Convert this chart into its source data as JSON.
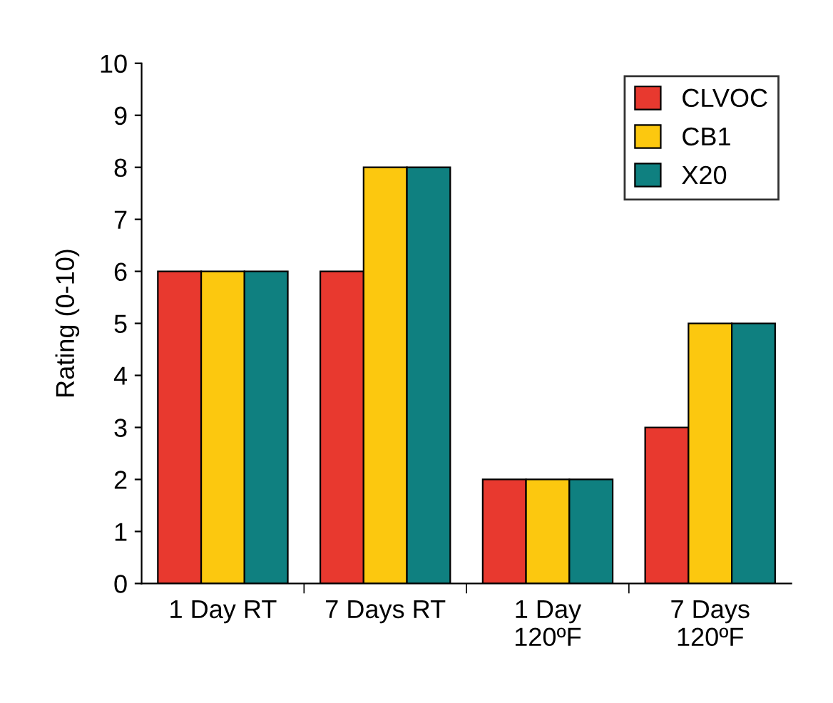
{
  "chart_data": {
    "type": "bar",
    "ylabel": "Rating (0-10)",
    "categories": [
      "1 Day RT",
      "7 Days RT",
      "1 Day\n120ºF",
      "7 Days\n120ºF"
    ],
    "series": [
      {
        "name": "CLVOC",
        "color": "#e8392f",
        "values": [
          6,
          6,
          2,
          3
        ]
      },
      {
        "name": "CB1",
        "color": "#fcc80f",
        "values": [
          6,
          8,
          2,
          5
        ]
      },
      {
        "name": "X20",
        "color": "#0f8080",
        "values": [
          6,
          8,
          2,
          5
        ]
      }
    ],
    "ylim": [
      0,
      10
    ],
    "yticks": [
      0,
      1,
      2,
      3,
      4,
      5,
      6,
      7,
      8,
      9,
      10
    ],
    "grid": false,
    "legend": "top right"
  }
}
